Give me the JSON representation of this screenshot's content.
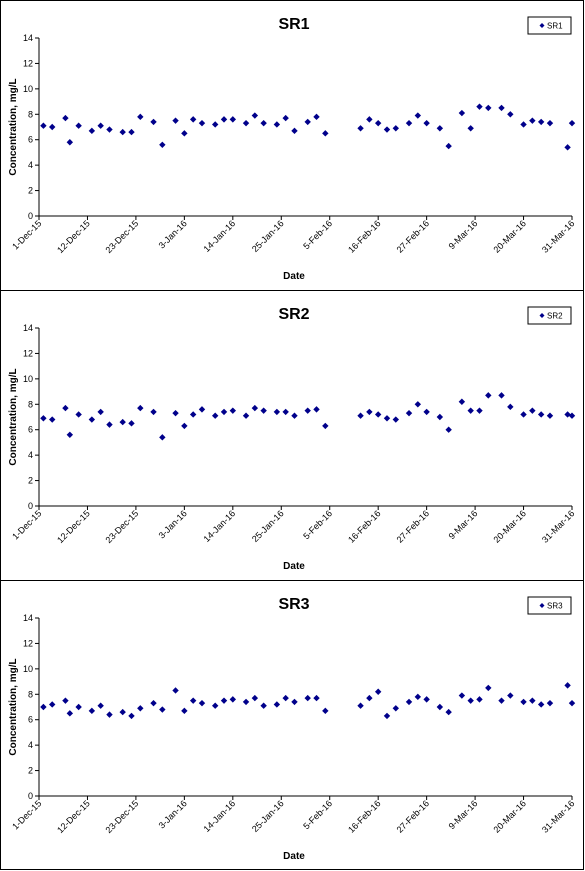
{
  "chart_data": [
    {
      "type": "scatter",
      "title": "SR1",
      "xlabel": "Date",
      "ylabel": "Concentration, mg/L",
      "ylim": [
        0,
        14
      ],
      "yticks": [
        "0",
        "2",
        "4",
        "6",
        "8",
        "10",
        "12",
        "14"
      ],
      "xlim": [
        "2015-12-01",
        "2016-03-31"
      ],
      "xticks": [
        "1-Dec-15",
        "12-Dec-15",
        "23-Dec-15",
        "3-Jan-16",
        "14-Jan-16",
        "25-Jan-16",
        "5-Feb-16",
        "16-Feb-16",
        "27-Feb-16",
        "9-Mar-16",
        "20-Mar-16",
        "31-Mar-16"
      ],
      "grid": false,
      "legend": "top-right",
      "marker_color": "#00008B",
      "series": [
        {
          "name": "SR1",
          "x": [
            "2015-12-02",
            "2015-12-04",
            "2015-12-07",
            "2015-12-08",
            "2015-12-10",
            "2015-12-13",
            "2015-12-15",
            "2015-12-17",
            "2015-12-20",
            "2015-12-22",
            "2015-12-24",
            "2015-12-27",
            "2015-12-29",
            "2016-01-01",
            "2016-01-03",
            "2016-01-05",
            "2016-01-07",
            "2016-01-10",
            "2016-01-12",
            "2016-01-14",
            "2016-01-17",
            "2016-01-19",
            "2016-01-21",
            "2016-01-24",
            "2016-01-26",
            "2016-01-28",
            "2016-01-31",
            "2016-02-02",
            "2016-02-04",
            "2016-02-12",
            "2016-02-14",
            "2016-02-16",
            "2016-02-18",
            "2016-02-20",
            "2016-02-23",
            "2016-02-25",
            "2016-02-27",
            "2016-03-01",
            "2016-03-03",
            "2016-03-06",
            "2016-03-08",
            "2016-03-10",
            "2016-03-12",
            "2016-03-15",
            "2016-03-17",
            "2016-03-20",
            "2016-03-22",
            "2016-03-24",
            "2016-03-26",
            "2016-03-30",
            "2016-03-31"
          ],
          "y": [
            7.1,
            7.0,
            7.7,
            5.8,
            7.1,
            6.7,
            7.1,
            6.8,
            6.6,
            6.6,
            7.8,
            7.4,
            5.6,
            7.5,
            6.5,
            7.6,
            7.3,
            7.2,
            7.6,
            7.6,
            7.3,
            7.9,
            7.3,
            7.2,
            7.7,
            6.7,
            7.4,
            7.8,
            6.5,
            6.9,
            7.6,
            7.3,
            6.8,
            6.9,
            7.3,
            7.9,
            7.3,
            6.9,
            5.5,
            8.1,
            6.9,
            8.6,
            8.5,
            8.5,
            8.0,
            7.2,
            7.5,
            7.4,
            7.3,
            5.4,
            7.3
          ]
        }
      ]
    },
    {
      "type": "scatter",
      "title": "SR2",
      "xlabel": "Date",
      "ylabel": "Concentration, mg/L",
      "ylim": [
        0,
        14
      ],
      "yticks": [
        "0",
        "2",
        "4",
        "6",
        "8",
        "10",
        "12",
        "14"
      ],
      "xlim": [
        "2015-12-01",
        "2016-03-31"
      ],
      "xticks": [
        "1-Dec-15",
        "12-Dec-15",
        "23-Dec-15",
        "3-Jan-16",
        "14-Jan-16",
        "25-Jan-16",
        "5-Feb-16",
        "16-Feb-16",
        "27-Feb-16",
        "9-Mar-16",
        "20-Mar-16",
        "31-Mar-16"
      ],
      "grid": false,
      "legend": "top-right",
      "marker_color": "#00008B",
      "series": [
        {
          "name": "SR2",
          "x": [
            "2015-12-02",
            "2015-12-04",
            "2015-12-07",
            "2015-12-08",
            "2015-12-10",
            "2015-12-13",
            "2015-12-15",
            "2015-12-17",
            "2015-12-20",
            "2015-12-22",
            "2015-12-24",
            "2015-12-27",
            "2015-12-29",
            "2016-01-01",
            "2016-01-03",
            "2016-01-05",
            "2016-01-07",
            "2016-01-10",
            "2016-01-12",
            "2016-01-14",
            "2016-01-17",
            "2016-01-19",
            "2016-01-21",
            "2016-01-24",
            "2016-01-26",
            "2016-01-28",
            "2016-01-31",
            "2016-02-02",
            "2016-02-04",
            "2016-02-12",
            "2016-02-14",
            "2016-02-16",
            "2016-02-18",
            "2016-02-20",
            "2016-02-23",
            "2016-02-25",
            "2016-02-27",
            "2016-03-01",
            "2016-03-03",
            "2016-03-06",
            "2016-03-08",
            "2016-03-10",
            "2016-03-12",
            "2016-03-15",
            "2016-03-17",
            "2016-03-20",
            "2016-03-22",
            "2016-03-24",
            "2016-03-26",
            "2016-03-30",
            "2016-03-31"
          ],
          "y": [
            6.9,
            6.8,
            7.7,
            5.6,
            7.2,
            6.8,
            7.4,
            6.4,
            6.6,
            6.5,
            7.7,
            7.4,
            5.4,
            7.3,
            6.3,
            7.2,
            7.6,
            7.1,
            7.4,
            7.5,
            7.1,
            7.7,
            7.5,
            7.4,
            7.4,
            7.1,
            7.5,
            7.6,
            6.3,
            7.1,
            7.4,
            7.2,
            6.9,
            6.8,
            7.3,
            8.0,
            7.4,
            7.0,
            6.0,
            8.2,
            7.5,
            7.5,
            8.7,
            8.7,
            7.8,
            7.2,
            7.5,
            7.2,
            7.1,
            7.2,
            7.1
          ]
        }
      ]
    },
    {
      "type": "scatter",
      "title": "SR3",
      "xlabel": "Date",
      "ylabel": "Concentration, mg/L",
      "ylim": [
        0,
        14
      ],
      "yticks": [
        "0",
        "2",
        "4",
        "6",
        "8",
        "10",
        "12",
        "14"
      ],
      "xlim": [
        "2015-12-01",
        "2016-03-31"
      ],
      "xticks": [
        "1-Dec-15",
        "12-Dec-15",
        "23-Dec-15",
        "3-Jan-16",
        "14-Jan-16",
        "25-Jan-16",
        "5-Feb-16",
        "16-Feb-16",
        "27-Feb-16",
        "9-Mar-16",
        "20-Mar-16",
        "31-Mar-16"
      ],
      "grid": false,
      "legend": "top-right",
      "marker_color": "#00008B",
      "series": [
        {
          "name": "SR3",
          "x": [
            "2015-12-02",
            "2015-12-04",
            "2015-12-07",
            "2015-12-08",
            "2015-12-10",
            "2015-12-13",
            "2015-12-15",
            "2015-12-17",
            "2015-12-20",
            "2015-12-22",
            "2015-12-24",
            "2015-12-27",
            "2015-12-29",
            "2016-01-01",
            "2016-01-03",
            "2016-01-05",
            "2016-01-07",
            "2016-01-10",
            "2016-01-12",
            "2016-01-14",
            "2016-01-17",
            "2016-01-19",
            "2016-01-21",
            "2016-01-24",
            "2016-01-26",
            "2016-01-28",
            "2016-01-31",
            "2016-02-02",
            "2016-02-04",
            "2016-02-12",
            "2016-02-14",
            "2016-02-16",
            "2016-02-18",
            "2016-02-20",
            "2016-02-23",
            "2016-02-25",
            "2016-02-27",
            "2016-03-01",
            "2016-03-03",
            "2016-03-06",
            "2016-03-08",
            "2016-03-10",
            "2016-03-12",
            "2016-03-15",
            "2016-03-17",
            "2016-03-20",
            "2016-03-22",
            "2016-03-24",
            "2016-03-26",
            "2016-03-30",
            "2016-03-31"
          ],
          "y": [
            7.0,
            7.2,
            7.5,
            6.5,
            7.0,
            6.7,
            7.1,
            6.4,
            6.6,
            6.3,
            6.9,
            7.3,
            6.8,
            8.3,
            6.7,
            7.5,
            7.3,
            7.1,
            7.5,
            7.6,
            7.4,
            7.7,
            7.1,
            7.2,
            7.7,
            7.4,
            7.7,
            7.7,
            6.7,
            7.1,
            7.7,
            8.2,
            6.3,
            6.9,
            7.4,
            7.8,
            7.6,
            7.0,
            6.6,
            7.9,
            7.5,
            7.6,
            8.5,
            7.5,
            7.9,
            7.4,
            7.5,
            7.2,
            7.3,
            8.7,
            7.3
          ]
        }
      ]
    }
  ]
}
